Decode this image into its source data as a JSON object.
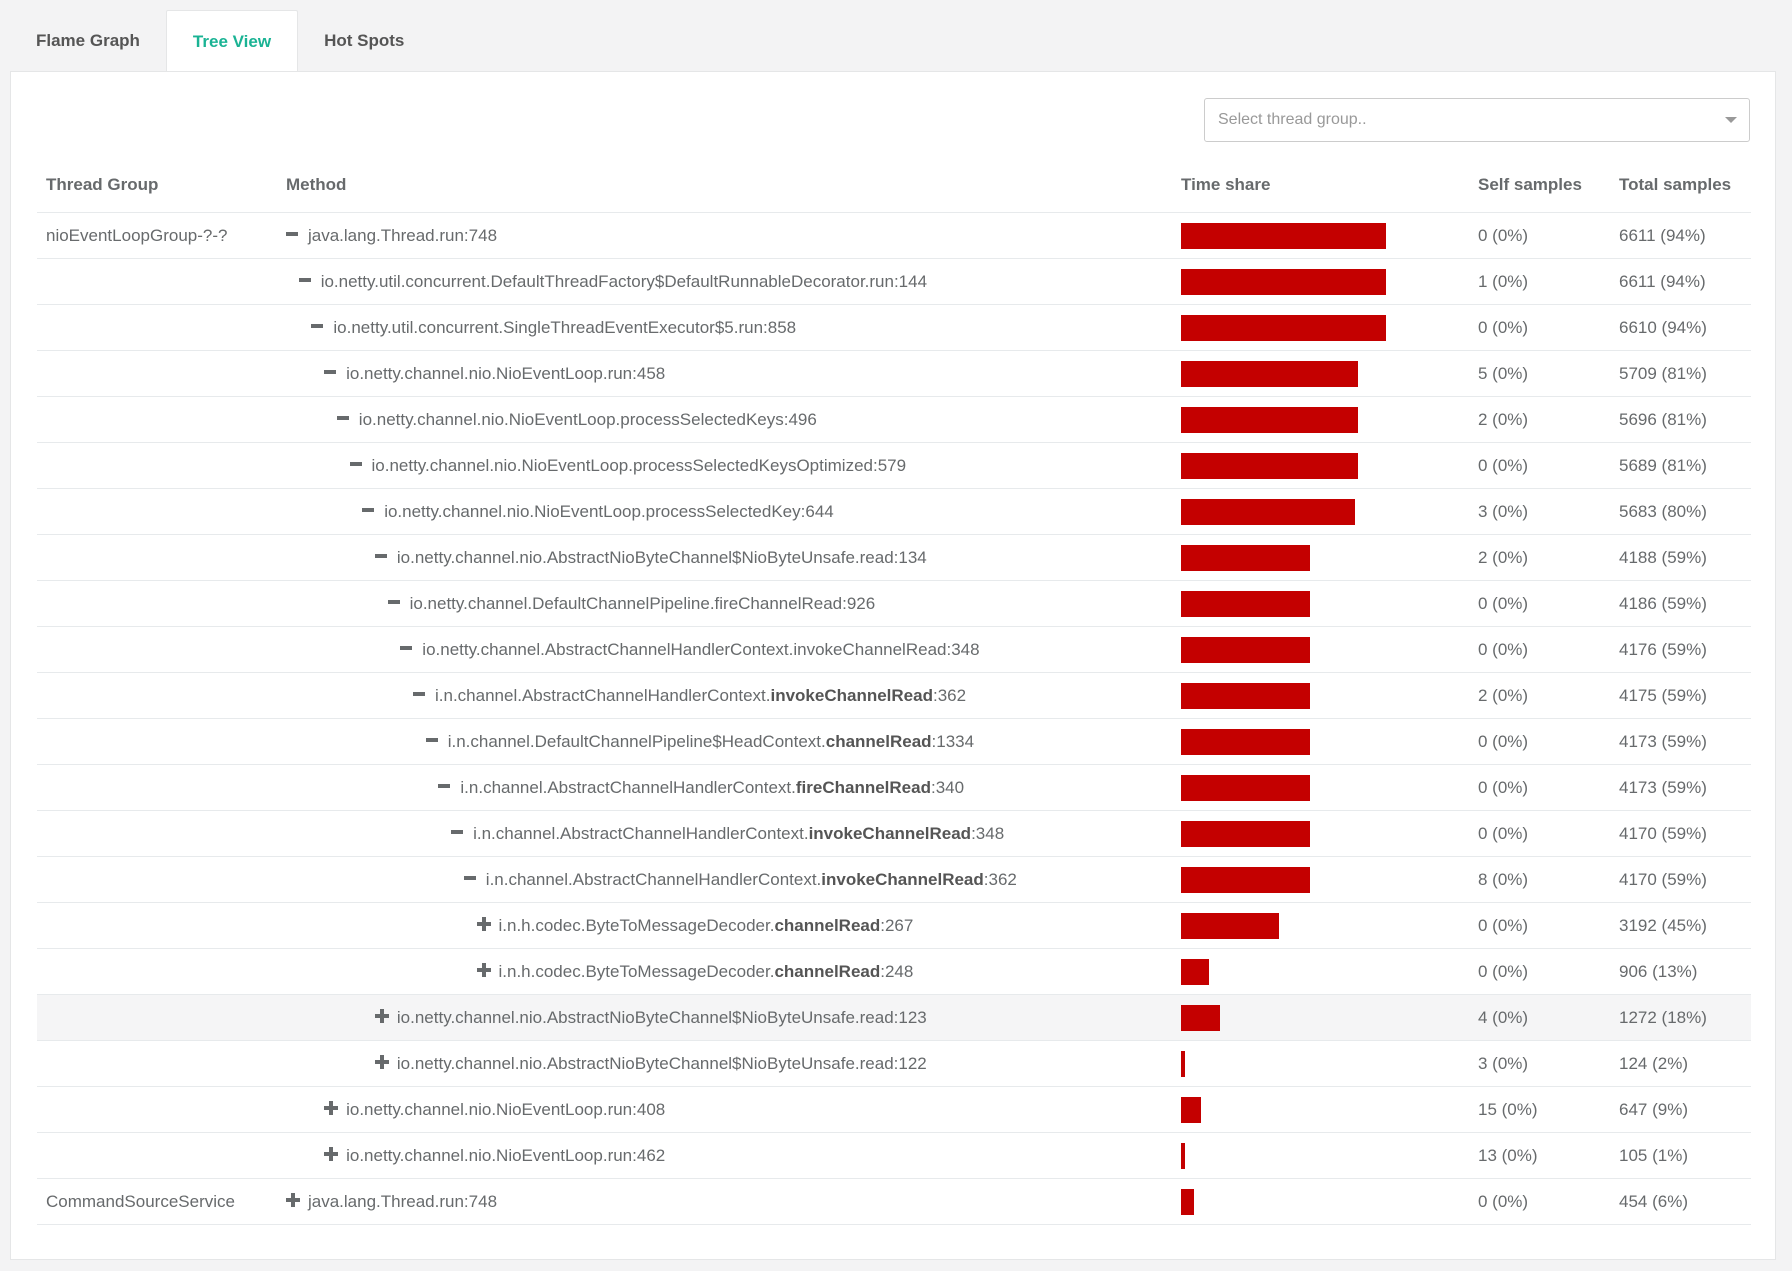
{
  "tabs": [
    {
      "label": "Flame Graph",
      "active": false
    },
    {
      "label": "Tree View",
      "active": true
    },
    {
      "label": "Hot Spots",
      "active": false
    }
  ],
  "thread_select": {
    "placeholder": "Select thread group.."
  },
  "table": {
    "headers": {
      "group": "Thread Group",
      "method": "Method",
      "time": "Time share",
      "self": "Self samples",
      "total": "Total samples"
    },
    "rows": [
      {
        "group": "nioEventLoopGroup-?-?",
        "depth": 0,
        "expanded": true,
        "method_pre": "java.lang.Thread.run:748",
        "method_bold": "",
        "method_post": "",
        "share": 0.94,
        "self": "0 (0%)",
        "total": "6611 (94%)"
      },
      {
        "group": "",
        "depth": 1,
        "expanded": true,
        "method_pre": "io.netty.util.concurrent.DefaultThreadFactory$DefaultRunnableDecorator.run:144",
        "method_bold": "",
        "method_post": "",
        "share": 0.94,
        "self": "1 (0%)",
        "total": "6611 (94%)"
      },
      {
        "group": "",
        "depth": 2,
        "expanded": true,
        "method_pre": "io.netty.util.concurrent.SingleThreadEventExecutor$5.run:858",
        "method_bold": "",
        "method_post": "",
        "share": 0.94,
        "self": "0 (0%)",
        "total": "6610 (94%)"
      },
      {
        "group": "",
        "depth": 3,
        "expanded": true,
        "method_pre": "io.netty.channel.nio.NioEventLoop.run:458",
        "method_bold": "",
        "method_post": "",
        "share": 0.81,
        "self": "5 (0%)",
        "total": "5709 (81%)"
      },
      {
        "group": "",
        "depth": 4,
        "expanded": true,
        "method_pre": "io.netty.channel.nio.NioEventLoop.processSelectedKeys:496",
        "method_bold": "",
        "method_post": "",
        "share": 0.81,
        "self": "2 (0%)",
        "total": "5696 (81%)"
      },
      {
        "group": "",
        "depth": 5,
        "expanded": true,
        "method_pre": "io.netty.channel.nio.NioEventLoop.processSelectedKeysOptimized:579",
        "method_bold": "",
        "method_post": "",
        "share": 0.81,
        "self": "0 (0%)",
        "total": "5689 (81%)"
      },
      {
        "group": "",
        "depth": 6,
        "expanded": true,
        "method_pre": "io.netty.channel.nio.NioEventLoop.processSelectedKey:644",
        "method_bold": "",
        "method_post": "",
        "share": 0.8,
        "self": "3 (0%)",
        "total": "5683 (80%)"
      },
      {
        "group": "",
        "depth": 7,
        "expanded": true,
        "method_pre": "io.netty.channel.nio.AbstractNioByteChannel$NioByteUnsafe.read:134",
        "method_bold": "",
        "method_post": "",
        "share": 0.59,
        "self": "2 (0%)",
        "total": "4188 (59%)"
      },
      {
        "group": "",
        "depth": 8,
        "expanded": true,
        "method_pre": "io.netty.channel.DefaultChannelPipeline.fireChannelRead:926",
        "method_bold": "",
        "method_post": "",
        "share": 0.59,
        "self": "0 (0%)",
        "total": "4186 (59%)"
      },
      {
        "group": "",
        "depth": 9,
        "expanded": true,
        "method_pre": "io.netty.channel.AbstractChannelHandlerContext.invokeChannelRead:348",
        "method_bold": "",
        "method_post": "",
        "share": 0.59,
        "self": "0 (0%)",
        "total": "4176 (59%)"
      },
      {
        "group": "",
        "depth": 10,
        "expanded": true,
        "method_pre": "i.n.channel.AbstractChannelHandlerContext.",
        "method_bold": "invokeChannelRead",
        "method_post": ":362",
        "share": 0.59,
        "self": "2 (0%)",
        "total": "4175 (59%)"
      },
      {
        "group": "",
        "depth": 11,
        "expanded": true,
        "method_pre": "i.n.channel.DefaultChannelPipeline$HeadContext.",
        "method_bold": "channelRead",
        "method_post": ":1334",
        "share": 0.59,
        "self": "0 (0%)",
        "total": "4173 (59%)"
      },
      {
        "group": "",
        "depth": 12,
        "expanded": true,
        "method_pre": "i.n.channel.AbstractChannelHandlerContext.",
        "method_bold": "fireChannelRead",
        "method_post": ":340",
        "share": 0.59,
        "self": "0 (0%)",
        "total": "4173 (59%)"
      },
      {
        "group": "",
        "depth": 13,
        "expanded": true,
        "method_pre": "i.n.channel.AbstractChannelHandlerContext.",
        "method_bold": "invokeChannelRead",
        "method_post": ":348",
        "share": 0.59,
        "self": "0 (0%)",
        "total": "4170 (59%)"
      },
      {
        "group": "",
        "depth": 14,
        "expanded": true,
        "method_pre": "i.n.channel.AbstractChannelHandlerContext.",
        "method_bold": "invokeChannelRead",
        "method_post": ":362",
        "share": 0.59,
        "self": "8 (0%)",
        "total": "4170 (59%)"
      },
      {
        "group": "",
        "depth": 15,
        "expanded": false,
        "method_pre": "i.n.h.codec.ByteToMessageDecoder.",
        "method_bold": "channelRead",
        "method_post": ":267",
        "share": 0.45,
        "self": "0 (0%)",
        "total": "3192 (45%)"
      },
      {
        "group": "",
        "depth": 15,
        "expanded": false,
        "method_pre": "i.n.h.codec.ByteToMessageDecoder.",
        "method_bold": "channelRead",
        "method_post": ":248",
        "share": 0.13,
        "self": "0 (0%)",
        "total": "906 (13%)"
      },
      {
        "group": "",
        "depth": 7,
        "expanded": false,
        "highlight": true,
        "method_pre": "io.netty.channel.nio.AbstractNioByteChannel$NioByteUnsafe.read:123",
        "method_bold": "",
        "method_post": "",
        "share": 0.18,
        "self": "4 (0%)",
        "total": "1272 (18%)"
      },
      {
        "group": "",
        "depth": 7,
        "expanded": false,
        "method_pre": "io.netty.channel.nio.AbstractNioByteChannel$NioByteUnsafe.read:122",
        "method_bold": "",
        "method_post": "",
        "share": 0.02,
        "self": "3 (0%)",
        "total": "124 (2%)"
      },
      {
        "group": "",
        "depth": 3,
        "expanded": false,
        "method_pre": "io.netty.channel.nio.NioEventLoop.run:408",
        "method_bold": "",
        "method_post": "",
        "share": 0.09,
        "self": "15 (0%)",
        "total": "647 (9%)"
      },
      {
        "group": "",
        "depth": 3,
        "expanded": false,
        "method_pre": "io.netty.channel.nio.NioEventLoop.run:462",
        "method_bold": "",
        "method_post": "",
        "share": 0.01,
        "self": "13 (0%)",
        "total": "105 (1%)"
      },
      {
        "group": "CommandSourceService",
        "depth": 0,
        "expanded": false,
        "method_pre": "java.lang.Thread.run:748",
        "method_bold": "",
        "method_post": "",
        "share": 0.06,
        "self": "0 (0%)",
        "total": "454 (6%)"
      }
    ]
  },
  "colors": {
    "bar": "#c40000",
    "accent": "#1ab394"
  }
}
